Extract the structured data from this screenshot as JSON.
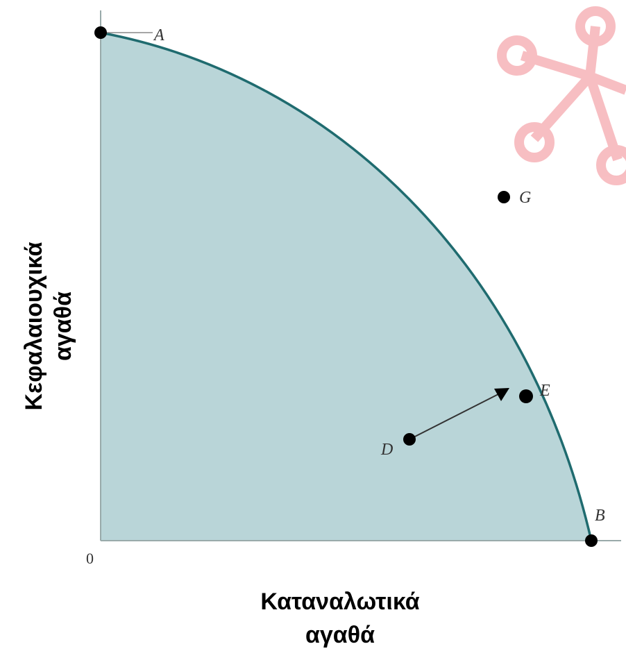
{
  "axes": {
    "y_label_lines": [
      "Κεφαλαιουχικά",
      "αγαθά"
    ],
    "x_label_lines": [
      "Καταναλωτικά",
      "αγαθά"
    ],
    "origin": "0"
  },
  "points": [
    {
      "label": "A"
    },
    {
      "label": "B"
    },
    {
      "label": "D"
    },
    {
      "label": "E"
    },
    {
      "label": "G"
    }
  ]
}
